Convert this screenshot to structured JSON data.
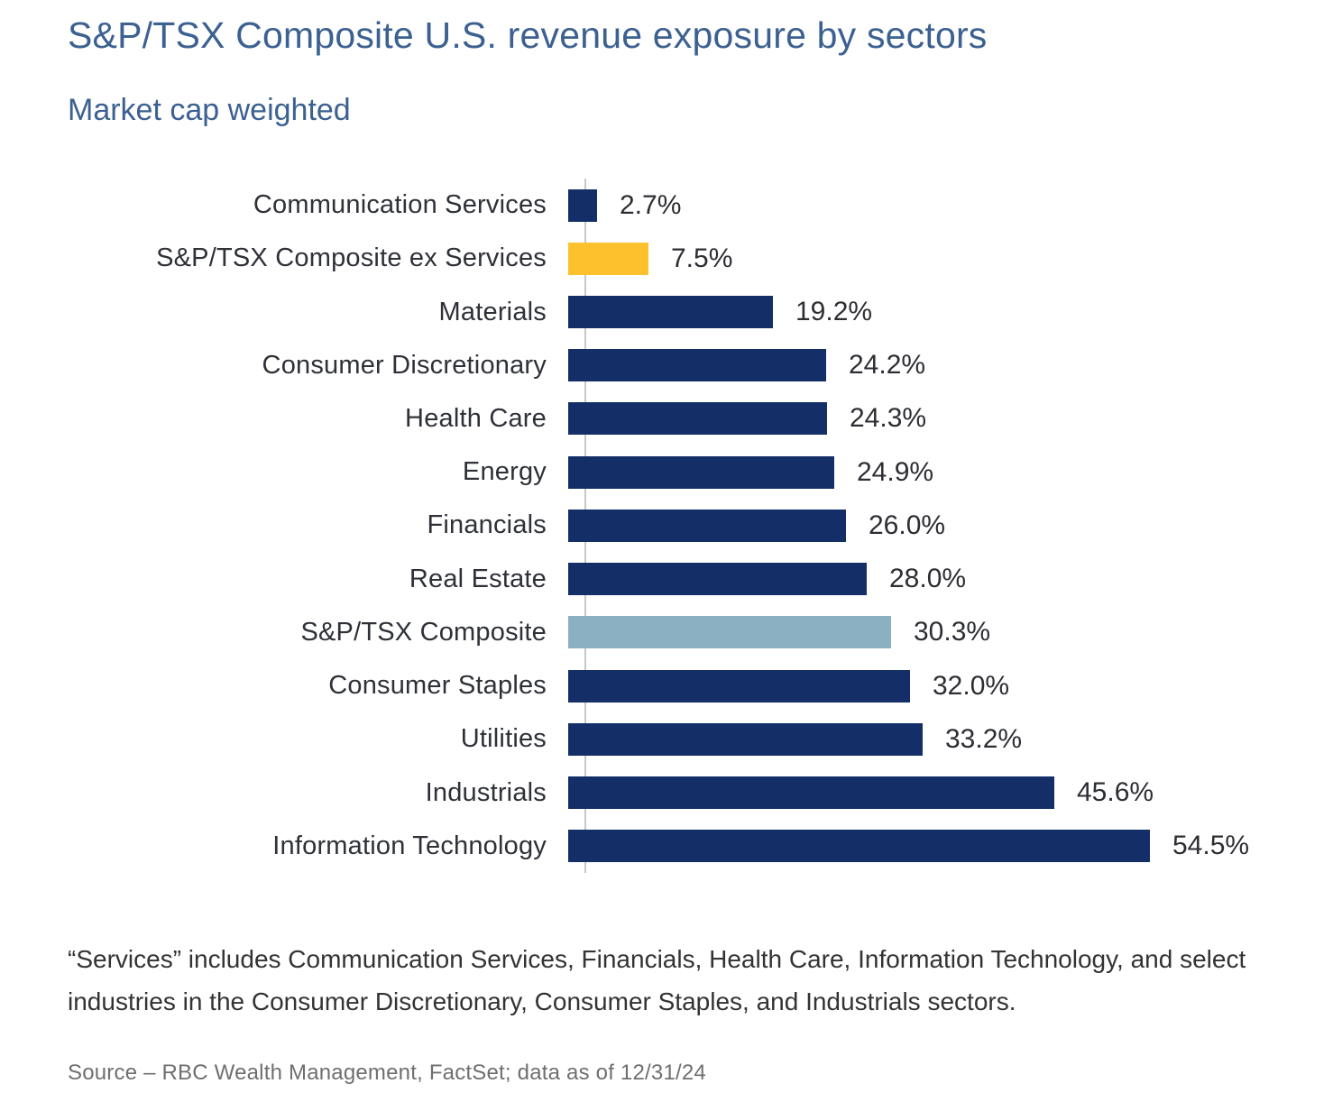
{
  "header": {
    "title": "S&P/TSX Composite U.S. revenue exposure by sectors",
    "subtitle": "Market cap weighted"
  },
  "chart_data": {
    "type": "bar",
    "orientation": "horizontal",
    "title": "S&P/TSX Composite U.S. revenue exposure by sectors",
    "subtitle": "Market cap weighted",
    "xlabel": "",
    "ylabel": "",
    "unit": "%",
    "xlim": [
      0,
      58.7
    ],
    "grid": false,
    "legend": "none",
    "categories": [
      "Communication Services",
      "S&P/TSX Composite ex Services",
      "Materials",
      "Consumer Discretionary",
      "Health Care",
      "Energy",
      "Financials",
      "Real Estate",
      "S&P/TSX Composite",
      "Consumer Staples",
      "Utilities",
      "Industrials",
      "Information Technology"
    ],
    "values": [
      2.7,
      7.5,
      19.2,
      24.2,
      24.3,
      24.9,
      26.0,
      28.0,
      30.3,
      32.0,
      33.2,
      45.6,
      54.5
    ],
    "value_labels": [
      "2.7%",
      "7.5%",
      "19.2%",
      "24.2%",
      "24.3%",
      "24.9%",
      "26.0%",
      "28.0%",
      "30.3%",
      "32.0%",
      "33.2%",
      "45.6%",
      "54.5%"
    ],
    "colors": {
      "default": "#142f68",
      "ex_services": "#fcc12d",
      "composite": "#8ab0c2",
      "axis": "#c7c7c7"
    },
    "bar_color_keys": [
      "default",
      "ex_services",
      "default",
      "default",
      "default",
      "default",
      "default",
      "default",
      "composite",
      "default",
      "default",
      "default",
      "default"
    ]
  },
  "footnote": "“Services” includes Communication Services, Financials, Health Care, Information Technology, and select industries in the Consumer Discretionary, Consumer Staples, and Industrials sectors.",
  "source": "Source – RBC Wealth Management, FactSet; data as of 12/31/24"
}
